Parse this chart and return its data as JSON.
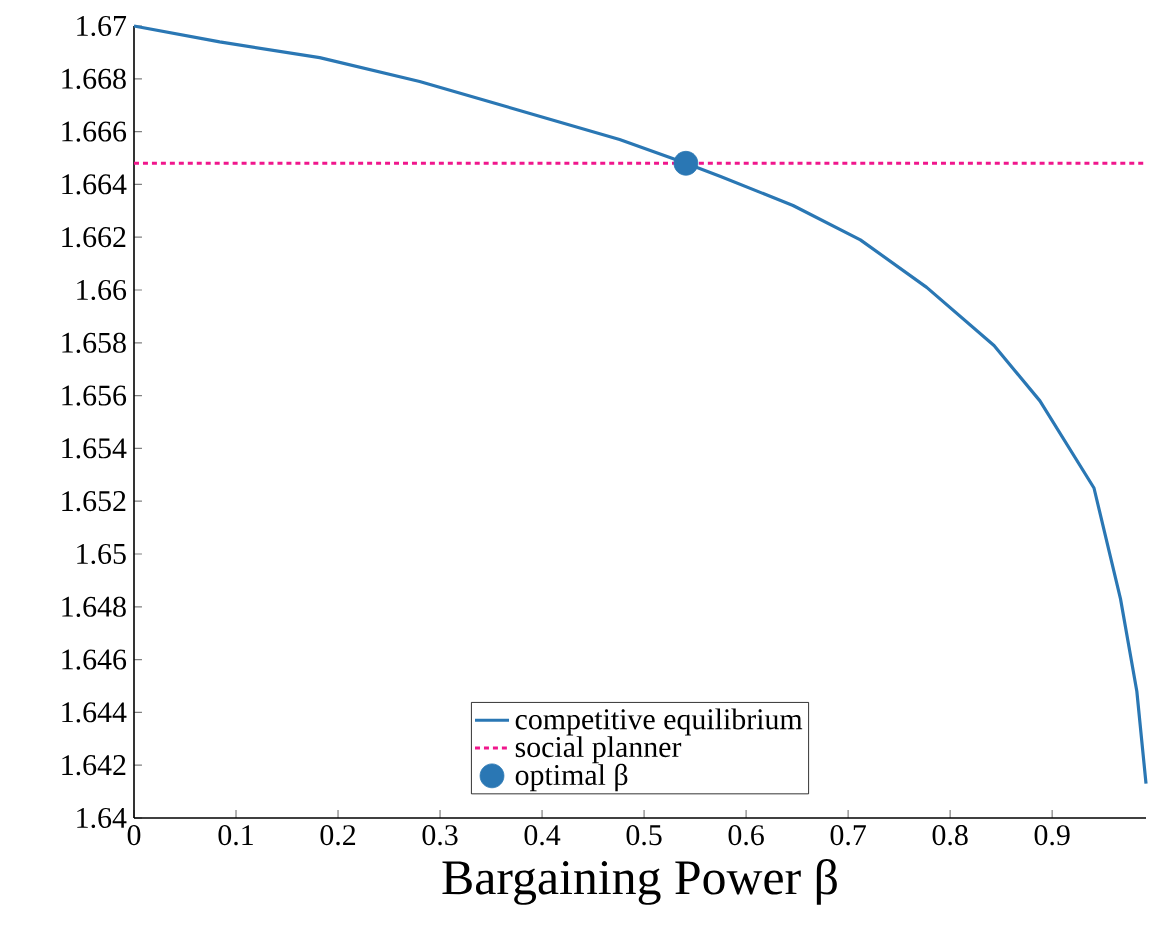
{
  "chart_data": {
    "type": "line",
    "xlabel": "Bargaining Power β",
    "xlim": [
      0,
      0.992
    ],
    "xticks": [
      0,
      0.1,
      0.2,
      0.3,
      0.4,
      0.5,
      0.6,
      0.7,
      0.8,
      0.9
    ],
    "ylim": [
      1.64,
      1.67
    ],
    "yticks": [
      1.64,
      1.642,
      1.644,
      1.646,
      1.648,
      1.65,
      1.652,
      1.654,
      1.656,
      1.658,
      1.66,
      1.662,
      1.664,
      1.666,
      1.668,
      1.67
    ],
    "grid": false,
    "legend": "bottom",
    "series": [
      {
        "name": "competitive equilibrium",
        "color": "#2a77b4",
        "line_style": "solid",
        "marker": "none",
        "x": [
          0,
          0.084,
          0.182,
          0.28,
          0.378,
          0.476,
          0.541,
          0.575,
          0.646,
          0.712,
          0.777,
          0.843,
          0.888,
          0.941,
          0.967,
          0.983,
          0.992
        ],
        "values": [
          1.67,
          1.6694,
          1.6688,
          1.6679,
          1.6668,
          1.6657,
          1.6648,
          1.6643,
          1.6632,
          1.6619,
          1.6601,
          1.6579,
          1.6558,
          1.6525,
          1.6483,
          1.6448,
          1.6413
        ]
      },
      {
        "name": "social planner",
        "type": "line",
        "color": "#f0168c",
        "line_style": "dotted",
        "marker": "none",
        "x": [
          0,
          0.992
        ],
        "values": [
          1.6648,
          1.6648
        ]
      },
      {
        "name": "optimal β",
        "type": "scatter",
        "color": "#2a77b4",
        "marker": "circle",
        "x": [
          0.541
        ],
        "values": [
          1.6648
        ]
      }
    ]
  }
}
